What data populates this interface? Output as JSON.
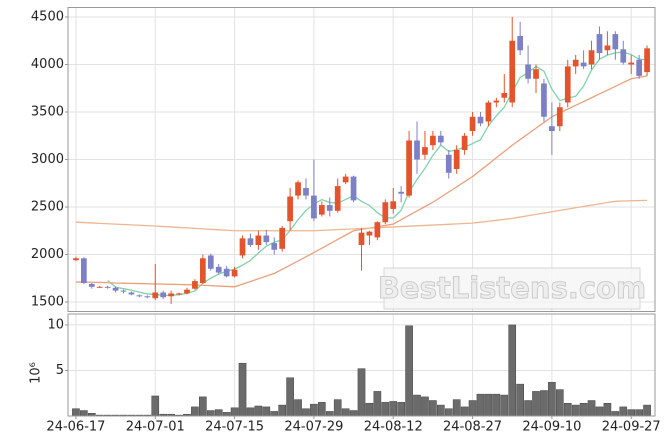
{
  "chart_data": [
    {
      "type": "candlestick",
      "up_color": "#e4542c",
      "down_color": "#7d80c4",
      "open": [
        1940,
        1960,
        1690,
        1660,
        1660,
        1650,
        1620,
        1600,
        1570,
        1560,
        1540,
        1600,
        1560,
        1580,
        1590,
        1640,
        1700,
        1990,
        1870,
        1850,
        1770,
        1990,
        2170,
        2100,
        2200,
        2120,
        2060,
        2350,
        2620,
        2700,
        2620,
        2420,
        2520,
        2460,
        2760,
        2820,
        2100,
        2200,
        2180,
        2340,
        2480,
        2660,
        2620,
        3200,
        3050,
        3150,
        3250,
        3050,
        2900,
        3100,
        3300,
        3450,
        3400,
        3600,
        3650,
        3600,
        4300,
        4000,
        3850,
        3800,
        3350,
        3350,
        3600,
        3980,
        4020,
        4000,
        4320,
        4150,
        4320,
        4160,
        4000,
        4050,
        3920
      ],
      "high": [
        1975,
        1970,
        1700,
        1670,
        1670,
        1660,
        1630,
        1610,
        1580,
        1570,
        1900,
        1620,
        1620,
        1600,
        1650,
        1740,
        2000,
        2010,
        1900,
        1880,
        1870,
        2200,
        2220,
        2250,
        2260,
        2180,
        2300,
        2700,
        2780,
        2800,
        3000,
        2560,
        2600,
        2800,
        2850,
        2830,
        2280,
        2250,
        2350,
        2580,
        2700,
        2720,
        3300,
        3400,
        3300,
        3300,
        3300,
        3100,
        3150,
        3280,
        3500,
        3500,
        3620,
        3650,
        3900,
        4500,
        4450,
        4200,
        4000,
        3850,
        3600,
        3600,
        4050,
        4100,
        4150,
        4250,
        4400,
        4350,
        4350,
        4250,
        4100,
        4100,
        4200
      ],
      "low": [
        1930,
        1690,
        1640,
        1650,
        1640,
        1600,
        1590,
        1570,
        1550,
        1540,
        1520,
        1530,
        1480,
        1570,
        1580,
        1630,
        1690,
        1830,
        1790,
        1760,
        1760,
        1960,
        2080,
        2050,
        2100,
        2000,
        2030,
        2250,
        2580,
        2580,
        2350,
        2400,
        2400,
        2440,
        2740,
        2550,
        1830,
        2100,
        2150,
        2320,
        2430,
        2550,
        2600,
        2850,
        3000,
        3100,
        3150,
        2800,
        2850,
        3050,
        3250,
        3350,
        3350,
        3550,
        3600,
        3550,
        4100,
        3800,
        3700,
        3400,
        3050,
        3300,
        3550,
        3900,
        3950,
        3950,
        4050,
        4100,
        4050,
        4000,
        3900,
        3850,
        3880
      ],
      "close": [
        1960,
        1700,
        1660,
        1660,
        1650,
        1620,
        1610,
        1580,
        1560,
        1555,
        1600,
        1550,
        1590,
        1590,
        1630,
        1720,
        1960,
        1850,
        1810,
        1770,
        1840,
        2170,
        2100,
        2200,
        2130,
        2050,
        2280,
        2610,
        2760,
        2620,
        2380,
        2520,
        2460,
        2720,
        2820,
        2570,
        2230,
        2240,
        2340,
        2550,
        2560,
        2640,
        3200,
        3000,
        3130,
        3250,
        3180,
        2860,
        3100,
        3250,
        3450,
        3380,
        3600,
        3620,
        3700,
        4250,
        4150,
        3850,
        3950,
        3450,
        3300,
        3550,
        3980,
        4050,
        3980,
        4150,
        4120,
        4200,
        4160,
        4020,
        4020,
        3880,
        4170
      ],
      "series": [
        {
          "color": "#7fd3a8",
          "values": [
            null,
            null,
            null,
            null,
            1726,
            1658,
            1640,
            1624,
            1604,
            1585,
            1581,
            1569,
            1571,
            1577,
            1592,
            1616,
            1698,
            1750,
            1794,
            1822,
            1846,
            1888,
            1938,
            2016,
            2088,
            2130,
            2152,
            2254,
            2366,
            2464,
            2530,
            2578,
            2548,
            2540,
            2580,
            2618,
            2560,
            2516,
            2440,
            2386,
            2384,
            2466,
            2658,
            2790,
            2906,
            3044,
            3152,
            3084,
            3104,
            3128,
            3168,
            3208,
            3356,
            3460,
            3550,
            3710,
            3864,
            3914,
            3980,
            3930,
            3740,
            3620,
            3646,
            3666,
            3772,
            3942,
            4056,
            4100,
            4122,
            4130,
            4104,
            4056,
            4050
          ]
        },
        {
          "color": "#e9a07a",
          "values": [
            1710,
            1710,
            1708,
            1706,
            1704,
            1700,
            1698,
            1696,
            1694,
            1692,
            1690,
            1688,
            1686,
            1684,
            1682,
            1680,
            1676,
            1672,
            1668,
            1664,
            1660,
            1688,
            1716,
            1744,
            1772,
            1800,
            1844,
            1888,
            1932,
            1976,
            2020,
            2066,
            2112,
            2158,
            2204,
            2250,
            2264,
            2278,
            2292,
            2306,
            2320,
            2366,
            2412,
            2458,
            2504,
            2550,
            2604,
            2658,
            2712,
            2766,
            2820,
            2886,
            2952,
            3018,
            3084,
            3150,
            3210,
            3270,
            3330,
            3390,
            3450,
            3490,
            3530,
            3570,
            3610,
            3650,
            3690,
            3730,
            3770,
            3810,
            3850,
            3865,
            3880
          ]
        },
        {
          "color": "#efb58f",
          "values": [
            2340,
            2336,
            2332,
            2328,
            2324,
            2320,
            2316,
            2312,
            2308,
            2304,
            2300,
            2295,
            2290,
            2285,
            2280,
            2275,
            2270,
            2265,
            2260,
            2255,
            2250,
            2250,
            2250,
            2250,
            2250,
            2250,
            2250,
            2250,
            2250,
            2250,
            2250,
            2254,
            2258,
            2262,
            2266,
            2270,
            2274,
            2278,
            2282,
            2286,
            2290,
            2294,
            2298,
            2302,
            2306,
            2310,
            2314,
            2318,
            2322,
            2326,
            2330,
            2340,
            2350,
            2360,
            2370,
            2380,
            2394,
            2408,
            2422,
            2436,
            2450,
            2464,
            2478,
            2492,
            2506,
            2520,
            2533,
            2547,
            2560,
            2563,
            2565,
            2568,
            2570
          ]
        }
      ],
      "ylim": [
        1400,
        4600
      ],
      "yticks": [
        1500,
        2000,
        2500,
        3000,
        3500,
        4000,
        4500
      ],
      "grid": true
    },
    {
      "type": "bar",
      "color": "#6b6b6b",
      "ylabel": "10⁶",
      "categories": [
        "24-06-17",
        null,
        null,
        null,
        null,
        null,
        null,
        null,
        null,
        null,
        "24-07-01",
        null,
        null,
        null,
        null,
        null,
        null,
        null,
        null,
        null,
        "24-07-15",
        null,
        null,
        null,
        null,
        null,
        null,
        null,
        null,
        null,
        "24-07-29",
        null,
        null,
        null,
        null,
        null,
        null,
        null,
        null,
        null,
        "24-08-12",
        null,
        null,
        null,
        null,
        null,
        null,
        null,
        null,
        null,
        "24-08-27",
        null,
        null,
        null,
        null,
        null,
        null,
        null,
        null,
        null,
        "24-09-10",
        null,
        null,
        null,
        null,
        null,
        null,
        null,
        null,
        null,
        "24-09-27",
        null,
        null
      ],
      "values": [
        0.8,
        0.6,
        0.3,
        0.1,
        0.1,
        0.1,
        0.1,
        0.1,
        0.1,
        0.1,
        2.2,
        0.2,
        0.2,
        0.1,
        0.2,
        1.0,
        2.1,
        0.6,
        0.7,
        0.4,
        0.9,
        5.8,
        0.9,
        1.1,
        1.0,
        0.5,
        1.2,
        4.2,
        1.8,
        0.8,
        1.3,
        1.5,
        0.5,
        1.8,
        0.8,
        0.6,
        5.2,
        1.4,
        2.7,
        1.5,
        1.6,
        1.5,
        9.9,
        2.3,
        2.1,
        1.7,
        1.2,
        0.8,
        1.8,
        1.0,
        1.7,
        2.4,
        2.4,
        2.4,
        2.3,
        10.0,
        3.5,
        1.7,
        2.7,
        2.8,
        3.7,
        2.9,
        1.4,
        1.2,
        1.4,
        1.7,
        1.0,
        1.4,
        0.5,
        1.0,
        0.7,
        0.7,
        1.2
      ],
      "ylim": [
        0,
        11.2
      ],
      "yticks": [
        5,
        10
      ],
      "grid": true
    }
  ],
  "watermark": "BestListens.com"
}
